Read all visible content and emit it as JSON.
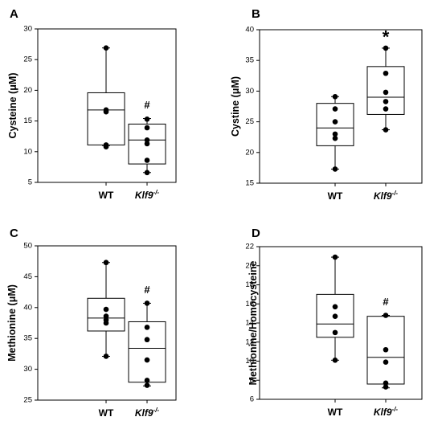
{
  "chart_data": [
    {
      "panel": "A",
      "type": "box",
      "ylabel": "Cysteine (μM)",
      "ylim": [
        5,
        30
      ],
      "yticks": [
        5,
        10,
        15,
        20,
        25,
        30
      ],
      "categories": [
        "WT",
        "Klf9-/-"
      ],
      "boxes": [
        {
          "whisker_low": 11.0,
          "q1": 11.1,
          "median": 16.8,
          "q3": 19.6,
          "whisker_high": 26.9,
          "points": [
            26.9,
            16.8,
            16.5,
            11.1,
            10.8
          ]
        },
        {
          "whisker_low": 6.6,
          "q1": 8.0,
          "median": 11.9,
          "q3": 14.5,
          "whisker_high": 15.4,
          "points": [
            15.3,
            13.9,
            11.9,
            11.3,
            8.6,
            6.6
          ]
        }
      ],
      "annotations": [
        {
          "category": "Klf9-/-",
          "text": "#"
        }
      ]
    },
    {
      "panel": "B",
      "type": "box",
      "ylabel": "Cystine (μM)",
      "ylim": [
        15,
        40
      ],
      "yticks": [
        15,
        20,
        25,
        30,
        35,
        40
      ],
      "categories": [
        "WT",
        "Klf9-/-"
      ],
      "boxes": [
        {
          "whisker_low": 17.3,
          "q1": 21.1,
          "median": 24.0,
          "q3": 28.0,
          "whisker_high": 29.1,
          "points": [
            29.1,
            27.1,
            25.0,
            23.0,
            22.3,
            17.3
          ]
        },
        {
          "whisker_low": 23.7,
          "q1": 26.2,
          "median": 29.0,
          "q3": 34.0,
          "whisker_high": 37.0,
          "points": [
            37.0,
            32.9,
            29.8,
            28.3,
            27.1,
            23.7
          ]
        }
      ],
      "annotations": [
        {
          "category": "Klf9-/-",
          "text": "*"
        }
      ]
    },
    {
      "panel": "C",
      "type": "box",
      "ylabel": "Methionine (μM)",
      "ylim": [
        25,
        50
      ],
      "yticks": [
        25,
        30,
        35,
        40,
        45,
        50
      ],
      "categories": [
        "WT",
        "Klf9-/-"
      ],
      "boxes": [
        {
          "whisker_low": 32.1,
          "q1": 36.2,
          "median": 38.3,
          "q3": 41.5,
          "whisker_high": 47.3,
          "points": [
            47.3,
            39.7,
            38.6,
            38.0,
            37.5,
            32.1
          ]
        },
        {
          "whisker_low": 27.3,
          "q1": 27.9,
          "median": 33.4,
          "q3": 37.7,
          "whisker_high": 40.7,
          "points": [
            40.7,
            36.8,
            34.8,
            31.5,
            28.2,
            27.4
          ]
        }
      ],
      "annotations": [
        {
          "category": "Klf9-/-",
          "text": "#"
        }
      ]
    },
    {
      "panel": "D",
      "type": "box",
      "ylabel": "Methionine/Homocysteine",
      "ylim": [
        6,
        22
      ],
      "yticks": [
        6,
        8,
        10,
        12,
        14,
        16,
        18,
        20,
        22
      ],
      "categories": [
        "WT",
        "Klf9-/-"
      ],
      "boxes": [
        {
          "whisker_low": 10.1,
          "q1": 12.5,
          "median": 13.9,
          "q3": 17.0,
          "whisker_high": 20.9,
          "points": [
            20.9,
            15.7,
            14.7,
            13.0,
            10.1
          ]
        },
        {
          "whisker_low": 7.2,
          "q1": 7.6,
          "median": 10.4,
          "q3": 14.7,
          "whisker_high": 14.8,
          "points": [
            14.8,
            11.2,
            9.9,
            7.7,
            7.3
          ]
        }
      ],
      "annotations": [
        {
          "category": "Klf9-/-",
          "text": "#"
        }
      ]
    }
  ]
}
